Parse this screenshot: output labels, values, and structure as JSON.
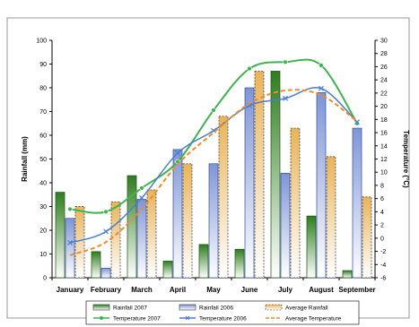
{
  "chart_data": {
    "type": "bar",
    "title": "",
    "categories": [
      "January",
      "February",
      "March",
      "April",
      "May",
      "June",
      "July",
      "August",
      "September"
    ],
    "ylabel": "Rainfall (mm)",
    "y2label": "Temperature (°C)",
    "ylim": [
      0,
      100
    ],
    "y2lim": [
      -6,
      30
    ],
    "yticks": [
      "0",
      "10",
      "20",
      "30",
      "40",
      "50",
      "60",
      "70",
      "80",
      "90",
      "100"
    ],
    "y2ticks": [
      "-6",
      "-4",
      "-2",
      "0",
      "2",
      "4",
      "6",
      "8",
      "10",
      "12",
      "14",
      "16",
      "18",
      "20",
      "22",
      "24",
      "26",
      "28",
      "30"
    ],
    "grid": false,
    "legend_position": "bottom",
    "bar_series": [
      {
        "name": "Rainfall 2007",
        "values": [
          36,
          11,
          43,
          7,
          14,
          12,
          87,
          26,
          3
        ],
        "color": "#2e7d1e"
      },
      {
        "name": "Rainfall 2006",
        "values": [
          25,
          4,
          33,
          54,
          48,
          80,
          44,
          78,
          63
        ],
        "color": "#7f95d6"
      },
      {
        "name": "Average Rainfall",
        "values": [
          30,
          32,
          37,
          48,
          68,
          87,
          63,
          51,
          34
        ],
        "color": "#e8b45a"
      }
    ],
    "line_series": [
      {
        "name": "Temperature 2007",
        "values": [
          4.4,
          4.0,
          7.6,
          11.6,
          19.4,
          25.7,
          26.7,
          26.2,
          17.4
        ],
        "color": "#3fb34f",
        "axis": "right"
      },
      {
        "name": "Temperature 2006",
        "values": [
          -0.7,
          1.0,
          6.1,
          12.9,
          16.3,
          20.1,
          21.2,
          22.7,
          17.6
        ],
        "color": "#4a7fd0",
        "axis": "right"
      },
      {
        "name": "Average Temperature",
        "values": [
          -2.6,
          -0.6,
          4.4,
          11.2,
          16.0,
          20.4,
          22.4,
          21.7,
          17.7
        ],
        "color": "#f08a2e",
        "axis": "right"
      }
    ]
  }
}
